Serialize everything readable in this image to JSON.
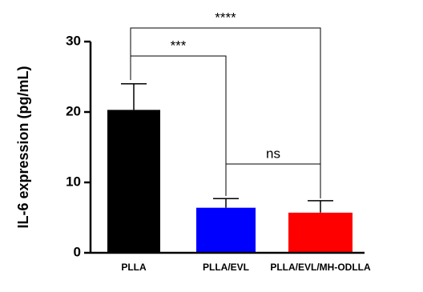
{
  "chart_data": {
    "type": "bar",
    "y_label": "IL-6 expression (pg/mL)",
    "categories": [
      "PLLA",
      "PLLA/EVL",
      "PLLA/EVL/MH-ODLLA"
    ],
    "values": [
      20.3,
      6.4,
      5.7
    ],
    "errors": [
      3.7,
      1.3,
      1.7
    ],
    "colors": [
      "#000000",
      "#0000ff",
      "#ff0000"
    ],
    "ylim": [
      0,
      30
    ],
    "yticks": [
      0,
      10,
      20,
      30
    ],
    "annotations": [
      "****",
      "***",
      "ns"
    ]
  }
}
